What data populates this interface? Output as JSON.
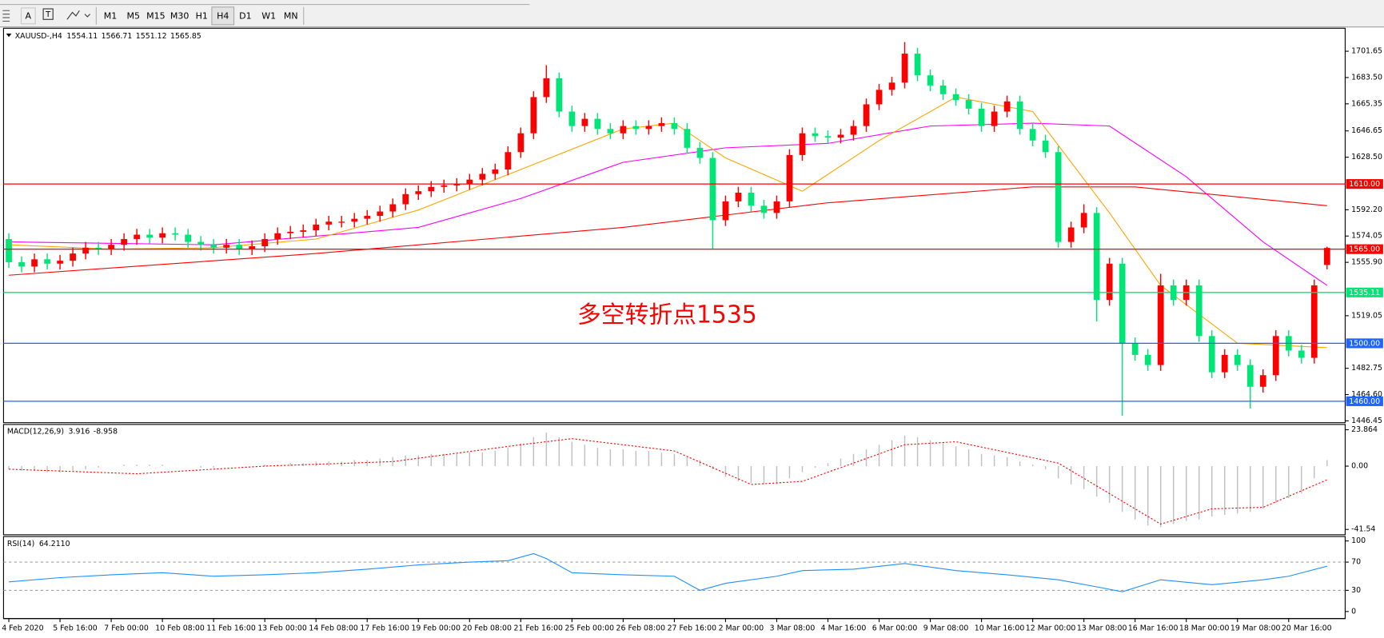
{
  "toolbar": {
    "tools": [
      "A"
    ],
    "timeframes": [
      "M1",
      "M5",
      "M15",
      "M30",
      "H1",
      "H4",
      "D1",
      "W1",
      "MN"
    ],
    "active": 5
  },
  "chart_data": [
    {
      "type": "candlestick",
      "title": "XAUUSD-,H4",
      "header_values": [
        1554.11,
        1566.71,
        1551.12,
        1565.85
      ],
      "up_color": "#ff0000",
      "down_color": "#00e676",
      "categories": [
        "4 Feb 2020",
        null,
        null,
        null,
        "5 Feb 16:00",
        null,
        null,
        null,
        "7 Feb 00:00",
        null,
        null,
        null,
        "10 Feb 08:00",
        null,
        null,
        null,
        "11 Feb 16:00",
        null,
        null,
        null,
        "13 Feb 00:00",
        null,
        null,
        null,
        "14 Feb 08:00",
        null,
        null,
        null,
        "17 Feb 16:00",
        null,
        null,
        null,
        "19 Feb 00:00",
        null,
        null,
        null,
        "20 Feb 08:00",
        null,
        null,
        null,
        "21 Feb 16:00",
        null,
        null,
        null,
        "25 Feb 00:00",
        null,
        null,
        null,
        "26 Feb 08:00",
        null,
        null,
        null,
        "27 Feb 16:00",
        null,
        null,
        null,
        "2 Mar 00:00",
        null,
        null,
        null,
        "3 Mar 08:00",
        null,
        null,
        null,
        "4 Mar 16:00",
        null,
        null,
        null,
        "6 Mar 00:00",
        null,
        null,
        null,
        "9 Mar 08:00",
        null,
        null,
        null,
        "10 Mar 16:00",
        null,
        null,
        null,
        "12 Mar 00:00",
        null,
        null,
        null,
        "13 Mar 08:00",
        null,
        null,
        null,
        "16 Mar 16:00",
        null,
        null,
        null,
        "18 Mar 00:00",
        null,
        null,
        null,
        "19 Mar 08:00",
        null,
        null,
        null,
        "20 Mar 16:00",
        null,
        null,
        null
      ],
      "open": [
        1572,
        1556,
        1553,
        1558,
        1555,
        1557,
        1562,
        1566,
        1565,
        1568,
        1572,
        1575,
        1573,
        1576,
        1575,
        1570,
        1568,
        1566,
        1568,
        1565,
        1567,
        1572,
        1576,
        1577,
        1578,
        1582,
        1584,
        1584,
        1586,
        1588,
        1591,
        1596,
        1603,
        1605,
        1608,
        1609,
        1610,
        1613,
        1617,
        1620,
        1632,
        1645,
        1670,
        1683,
        1660,
        1650,
        1655,
        1648,
        1645,
        1650,
        1648,
        1650,
        1652,
        1648,
        1635,
        1628,
        1585,
        1598,
        1604,
        1595,
        1590,
        1598,
        1630,
        1645,
        1643,
        1642,
        1644,
        1650,
        1665,
        1675,
        1680,
        1700,
        1685,
        1678,
        1672,
        1668,
        1662,
        1650,
        1660,
        1667,
        1648,
        1640,
        1632,
        1570,
        1580,
        1590,
        1530,
        1555,
        1500,
        1492,
        1485,
        1540,
        1530,
        1540,
        1505,
        1480,
        1492,
        1485,
        1470,
        1478,
        1505,
        1495,
        1490,
        1554.11
      ],
      "high": [
        1576,
        1560,
        1562,
        1562,
        1561,
        1566,
        1570,
        1570,
        1572,
        1576,
        1579,
        1579,
        1580,
        1580,
        1579,
        1574,
        1572,
        1572,
        1572,
        1571,
        1576,
        1580,
        1581,
        1582,
        1586,
        1588,
        1588,
        1590,
        1592,
        1595,
        1600,
        1607,
        1609,
        1612,
        1613,
        1614,
        1617,
        1621,
        1624,
        1636,
        1649,
        1674,
        1692,
        1687,
        1664,
        1659,
        1659,
        1652,
        1654,
        1654,
        1654,
        1656,
        1656,
        1652,
        1639,
        1632,
        1602,
        1608,
        1608,
        1599,
        1602,
        1634,
        1649,
        1649,
        1647,
        1648,
        1654,
        1669,
        1679,
        1684,
        1708,
        1704,
        1689,
        1682,
        1676,
        1672,
        1666,
        1664,
        1671,
        1671,
        1652,
        1644,
        1636,
        1584,
        1596,
        1594,
        1559,
        1559,
        1504,
        1496,
        1548,
        1544,
        1544,
        1544,
        1509,
        1496,
        1496,
        1489,
        1482,
        1509,
        1509,
        1499,
        1544,
        1566.71
      ],
      "low": [
        1552,
        1549,
        1549,
        1551,
        1551,
        1553,
        1558,
        1561,
        1561,
        1564,
        1568,
        1569,
        1569,
        1571,
        1566,
        1564,
        1562,
        1562,
        1561,
        1561,
        1563,
        1568,
        1572,
        1573,
        1574,
        1578,
        1580,
        1580,
        1582,
        1584,
        1587,
        1592,
        1599,
        1601,
        1604,
        1605,
        1606,
        1609,
        1613,
        1616,
        1628,
        1641,
        1666,
        1656,
        1646,
        1646,
        1644,
        1641,
        1641,
        1644,
        1644,
        1646,
        1644,
        1631,
        1624,
        1565,
        1581,
        1594,
        1591,
        1586,
        1586,
        1594,
        1626,
        1639,
        1638,
        1638,
        1640,
        1646,
        1661,
        1671,
        1676,
        1681,
        1674,
        1668,
        1664,
        1658,
        1646,
        1646,
        1656,
        1644,
        1636,
        1628,
        1566,
        1566,
        1576,
        1515,
        1526,
        1450,
        1488,
        1481,
        1481,
        1526,
        1526,
        1501,
        1476,
        1476,
        1481,
        1455,
        1466,
        1474,
        1491,
        1486,
        1486,
        1551.12
      ],
      "close": [
        1556,
        1553,
        1558,
        1555,
        1557,
        1562,
        1566,
        1565,
        1568,
        1572,
        1575,
        1573,
        1576,
        1575,
        1570,
        1568,
        1566,
        1568,
        1565,
        1567,
        1572,
        1576,
        1577,
        1578,
        1582,
        1584,
        1584,
        1586,
        1588,
        1591,
        1596,
        1603,
        1605,
        1608,
        1609,
        1610,
        1613,
        1617,
        1620,
        1632,
        1645,
        1670,
        1683,
        1660,
        1650,
        1655,
        1648,
        1645,
        1650,
        1648,
        1650,
        1652,
        1648,
        1635,
        1628,
        1585,
        1598,
        1604,
        1595,
        1590,
        1598,
        1630,
        1645,
        1643,
        1642,
        1644,
        1650,
        1665,
        1675,
        1680,
        1700,
        1685,
        1678,
        1672,
        1668,
        1662,
        1650,
        1660,
        1667,
        1648,
        1640,
        1632,
        1570,
        1580,
        1590,
        1530,
        1555,
        1500,
        1492,
        1485,
        1540,
        1530,
        1540,
        1505,
        1480,
        1492,
        1485,
        1470,
        1478,
        1505,
        1495,
        1490,
        1540,
        1565.85
      ],
      "overlays": [
        {
          "color": "#ff0000",
          "x": [
            0,
            24,
            48,
            64,
            80,
            88,
            103
          ],
          "values": [
            1547,
            1562,
            1580,
            1597,
            1608,
            1608,
            1595
          ]
        },
        {
          "color": "#ff00ff",
          "x": [
            0,
            16,
            32,
            40,
            48,
            56,
            64,
            72,
            80,
            86,
            92,
            98,
            103
          ],
          "values": [
            1570,
            1568,
            1580,
            1600,
            1625,
            1635,
            1638,
            1650,
            1652,
            1650,
            1615,
            1570,
            1540
          ]
        },
        {
          "color": "#ffa500",
          "x": [
            0,
            8,
            16,
            24,
            32,
            40,
            48,
            52,
            56,
            62,
            68,
            74,
            80,
            86,
            90,
            96,
            103
          ],
          "values": [
            1568,
            1565,
            1566,
            1572,
            1592,
            1620,
            1648,
            1652,
            1628,
            1605,
            1640,
            1670,
            1660,
            1590,
            1540,
            1500,
            1497
          ]
        }
      ],
      "levels": [
        {
          "value": 1610,
          "label": "1610.00",
          "color": "#ff0000"
        },
        {
          "value": 1565,
          "label": "1565.00",
          "color": "#ff0000"
        },
        {
          "value": 1535.11,
          "label": "1535.11",
          "color": "#00e676"
        },
        {
          "value": 1500,
          "label": "1500.00",
          "color": "#1e64ff"
        },
        {
          "value": 1460,
          "label": "1460.00",
          "color": "#1e64ff"
        }
      ],
      "annotation": {
        "text": "多空转折点1535",
        "color": "#ff0000"
      },
      "ylim": [
        1445.8,
        1715.7
      ],
      "yticks": [
        1701.65,
        {
          "value": 1683.5,
          "label": "1683.50"
        },
        1665.35,
        1646.65,
        {
          "value": 1628.5,
          "label": "1628.50"
        },
        {
          "value": 1592.2,
          "label": "1592.20"
        },
        1574.05,
        {
          "value": 1555.9,
          "label": "1555.90"
        },
        1519.05,
        1482.75,
        {
          "value": 1464.6,
          "label": "1464.60"
        },
        1446.45
      ]
    },
    {
      "type": "macd",
      "title": "MACD(12,26,9)",
      "header_values": [
        3.916,
        -8.958
      ],
      "histogram": {
        "color": "#c0c0c0",
        "values": [
          -2,
          -3,
          -3,
          -4,
          -4,
          -3,
          -2,
          -1,
          0,
          1,
          1,
          1,
          1,
          0,
          0,
          -1,
          -1,
          0,
          0,
          0,
          1,
          1,
          2,
          2,
          3,
          3,
          3,
          4,
          4,
          5,
          6,
          7,
          7,
          8,
          8,
          8,
          9,
          9,
          10,
          12,
          15,
          19,
          22,
          19,
          16,
          14,
          12,
          11,
          11,
          10,
          10,
          9,
          8,
          6,
          4,
          -2,
          -7,
          -10,
          -11,
          -12,
          -12,
          -8,
          -4,
          -1,
          2,
          5,
          8,
          11,
          14,
          17,
          20,
          19,
          17,
          15,
          13,
          11,
          8,
          7,
          6,
          3,
          1,
          -2,
          -8,
          -12,
          -15,
          -20,
          -24,
          -30,
          -35,
          -39,
          -40,
          -38,
          -36,
          -35,
          -33,
          -32,
          -31,
          -30,
          -28,
          -24,
          -21,
          -18,
          -8,
          3.916
        ]
      },
      "signal": {
        "color": "#ff0000",
        "x": [
          0,
          10,
          20,
          30,
          40,
          44,
          52,
          58,
          62,
          70,
          74,
          82,
          90,
          94,
          98,
          103
        ],
        "values": [
          -2,
          -5,
          0,
          3,
          14,
          18,
          10,
          -12,
          -10,
          14,
          16,
          2,
          -38,
          -28,
          -27,
          -8.958
        ]
      },
      "ylim": [
        -43.85,
        26.18
      ],
      "yticks": [
        23.864,
        {
          "value": 0,
          "label": "0.00"
        },
        -41.54
      ]
    },
    {
      "type": "rsi",
      "title": "RSI(14)",
      "header_values": [
        {
          "value": 64.211,
          "label": "64.2110"
        }
      ],
      "color": "#1e90ff",
      "x": [
        0,
        4,
        8,
        12,
        16,
        20,
        24,
        28,
        32,
        36,
        39,
        41,
        42,
        44,
        48,
        52,
        54,
        56,
        60,
        62,
        66,
        70,
        74,
        78,
        82,
        85,
        87,
        90,
        94,
        98,
        100,
        103
      ],
      "values": [
        42,
        48,
        52,
        55,
        50,
        52,
        55,
        60,
        66,
        70,
        72,
        82,
        75,
        55,
        52,
        50,
        30,
        40,
        50,
        58,
        60,
        68,
        58,
        52,
        45,
        35,
        28,
        45,
        38,
        45,
        50,
        64.211
      ],
      "levels": [
        70,
        30
      ],
      "ylim": [
        -5,
        102.5
      ],
      "yticks": [
        100,
        70,
        30,
        0
      ]
    }
  ]
}
